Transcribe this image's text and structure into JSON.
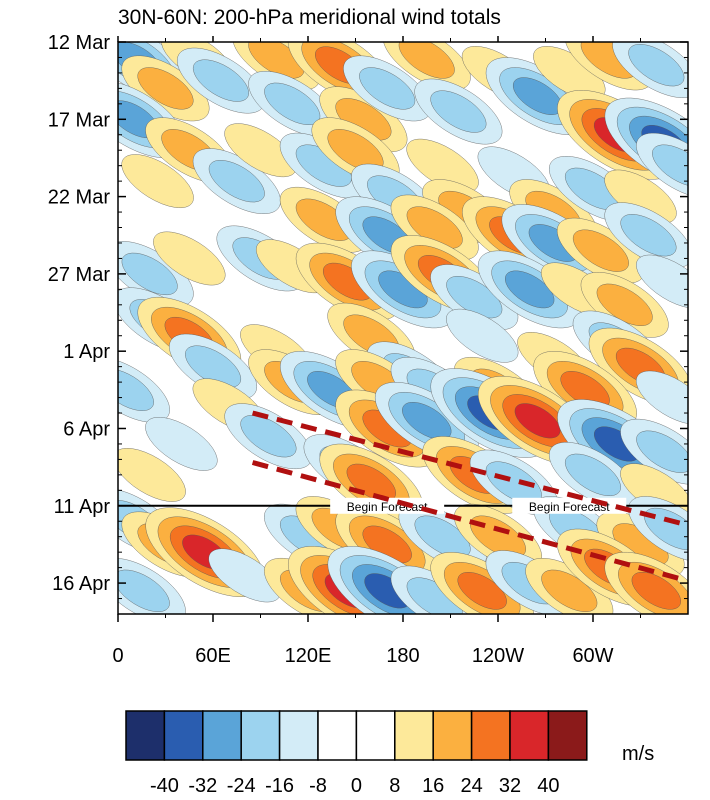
{
  "chart_data": {
    "type": "heatmap",
    "title": "30N-60N: 200-hPa meridional wind totals",
    "xlabel": "",
    "ylabel": "",
    "x_ticks": [
      {
        "lon": 0,
        "label": "0"
      },
      {
        "lon": 60,
        "label": "60E"
      },
      {
        "lon": 120,
        "label": "120E"
      },
      {
        "lon": 180,
        "label": "180"
      },
      {
        "lon": 240,
        "label": "120W"
      },
      {
        "lon": 300,
        "label": "60W"
      }
    ],
    "y_ticks": [
      {
        "day": 0,
        "label": "12 Mar"
      },
      {
        "day": 5,
        "label": "17 Mar"
      },
      {
        "day": 10,
        "label": "22 Mar"
      },
      {
        "day": 15,
        "label": "27 Mar"
      },
      {
        "day": 20,
        "label": "1 Apr"
      },
      {
        "day": 25,
        "label": "6 Apr"
      },
      {
        "day": 30,
        "label": "11 Apr"
      },
      {
        "day": 35,
        "label": "16 Apr"
      }
    ],
    "xlim": [
      0,
      360
    ],
    "ylim": [
      0,
      37
    ],
    "forecast_line": {
      "day": 30,
      "labels": [
        "Begin Forecast",
        "Begin Forecast"
      ],
      "label_lons": [
        170,
        285
      ]
    },
    "dashed_lines": [
      {
        "color": "#b01010",
        "start": {
          "lon": 85,
          "day": 24.0
        },
        "end": {
          "lon": 358,
          "day": 31.2
        }
      },
      {
        "color": "#b01010",
        "start": {
          "lon": 85,
          "day": 27.2
        },
        "end": {
          "lon": 358,
          "day": 34.8
        }
      }
    ],
    "colorbar": {
      "unit": "m/s",
      "levels": [
        "-40",
        "-32",
        "-24",
        "-16",
        "-8",
        "0",
        "8",
        "16",
        "24",
        "32",
        "40"
      ],
      "colors": [
        "#1d2f6b",
        "#2a5db0",
        "#5aa4d8",
        "#9cd3ef",
        "#d3ecf7",
        "#ffffff",
        "#ffffff",
        "#fde99a",
        "#fbb040",
        "#f47321",
        "#d9262a",
        "#8b1a1a"
      ]
    },
    "features": [
      {
        "lon": 12,
        "day": 1.2,
        "v": -24
      },
      {
        "lon": 30,
        "day": 3,
        "v": 16
      },
      {
        "lon": 50,
        "day": 1,
        "v": 8
      },
      {
        "lon": 65,
        "day": 2.5,
        "v": -16
      },
      {
        "lon": 100,
        "day": 1,
        "v": 16
      },
      {
        "lon": 110,
        "day": 4,
        "v": -16
      },
      {
        "lon": 140,
        "day": 1.5,
        "v": 24
      },
      {
        "lon": 155,
        "day": 5,
        "v": 16
      },
      {
        "lon": 170,
        "day": 3,
        "v": -16
      },
      {
        "lon": 195,
        "day": 1,
        "v": 16
      },
      {
        "lon": 215,
        "day": 4.5,
        "v": -16
      },
      {
        "lon": 240,
        "day": 2,
        "v": 8
      },
      {
        "lon": 265,
        "day": 3.5,
        "v": -24
      },
      {
        "lon": 285,
        "day": 2,
        "v": 8
      },
      {
        "lon": 310,
        "day": 1,
        "v": 16
      },
      {
        "lon": 340,
        "day": 1.5,
        "v": -16
      },
      {
        "lon": 315,
        "day": 6,
        "v": 32
      },
      {
        "lon": 345,
        "day": 6.5,
        "v": -32
      },
      {
        "lon": 10,
        "day": 5,
        "v": -24
      },
      {
        "lon": 45,
        "day": 7,
        "v": 16
      },
      {
        "lon": 25,
        "day": 9,
        "v": 8
      },
      {
        "lon": 75,
        "day": 9,
        "v": -16
      },
      {
        "lon": 90,
        "day": 7,
        "v": 8
      },
      {
        "lon": 130,
        "day": 8,
        "v": -16
      },
      {
        "lon": 150,
        "day": 7,
        "v": 16
      },
      {
        "lon": 175,
        "day": 10,
        "v": -16
      },
      {
        "lon": 205,
        "day": 8,
        "v": 8
      },
      {
        "lon": 220,
        "day": 11,
        "v": 16
      },
      {
        "lon": 250,
        "day": 8.5,
        "v": -8
      },
      {
        "lon": 275,
        "day": 11,
        "v": 16
      },
      {
        "lon": 300,
        "day": 9.5,
        "v": -16
      },
      {
        "lon": 330,
        "day": 10,
        "v": 8
      },
      {
        "lon": 355,
        "day": 8,
        "v": -16
      },
      {
        "lon": 130,
        "day": 11.5,
        "v": 16
      },
      {
        "lon": 170,
        "day": 12.5,
        "v": -24
      },
      {
        "lon": 200,
        "day": 12,
        "v": 16
      },
      {
        "lon": 250,
        "day": 12.5,
        "v": 24
      },
      {
        "lon": 275,
        "day": 13,
        "v": -24
      },
      {
        "lon": 305,
        "day": 13.5,
        "v": 16
      },
      {
        "lon": 335,
        "day": 12.5,
        "v": -16
      },
      {
        "lon": 20,
        "day": 15,
        "v": -16
      },
      {
        "lon": 45,
        "day": 14,
        "v": 8
      },
      {
        "lon": 90,
        "day": 14,
        "v": -16
      },
      {
        "lon": 110,
        "day": 14.5,
        "v": 8
      },
      {
        "lon": 145,
        "day": 15.5,
        "v": 24
      },
      {
        "lon": 180,
        "day": 16,
        "v": -24
      },
      {
        "lon": 205,
        "day": 15,
        "v": 24
      },
      {
        "lon": 225,
        "day": 16.5,
        "v": -16
      },
      {
        "lon": 260,
        "day": 16,
        "v": -24
      },
      {
        "lon": 290,
        "day": 16,
        "v": 8
      },
      {
        "lon": 320,
        "day": 17,
        "v": 16
      },
      {
        "lon": 350,
        "day": 15.5,
        "v": -8
      },
      {
        "lon": 25,
        "day": 18,
        "v": -16
      },
      {
        "lon": 45,
        "day": 19,
        "v": 24
      },
      {
        "lon": 60,
        "day": 21,
        "v": -16
      },
      {
        "lon": 100,
        "day": 20,
        "v": 8
      },
      {
        "lon": 160,
        "day": 19,
        "v": 16
      },
      {
        "lon": 185,
        "day": 21.5,
        "v": -16
      },
      {
        "lon": 230,
        "day": 19,
        "v": -8
      },
      {
        "lon": 275,
        "day": 20.5,
        "v": 8
      },
      {
        "lon": 315,
        "day": 19.5,
        "v": -16
      },
      {
        "lon": 330,
        "day": 21,
        "v": 24
      },
      {
        "lon": 5,
        "day": 22.5,
        "v": -16
      },
      {
        "lon": 70,
        "day": 23.5,
        "v": 8
      },
      {
        "lon": 110,
        "day": 22,
        "v": 16
      },
      {
        "lon": 135,
        "day": 22.5,
        "v": -24
      },
      {
        "lon": 165,
        "day": 22,
        "v": 16
      },
      {
        "lon": 200,
        "day": 22.5,
        "v": -16
      },
      {
        "lon": 240,
        "day": 22.5,
        "v": 16
      },
      {
        "lon": 295,
        "day": 22.5,
        "v": 24
      },
      {
        "lon": 350,
        "day": 23,
        "v": -8
      },
      {
        "lon": 40,
        "day": 26,
        "v": -8
      },
      {
        "lon": 95,
        "day": 25.5,
        "v": -16
      },
      {
        "lon": 170,
        "day": 25,
        "v": 24
      },
      {
        "lon": 195,
        "day": 24.5,
        "v": -24
      },
      {
        "lon": 235,
        "day": 24,
        "v": -32
      },
      {
        "lon": 265,
        "day": 24.5,
        "v": 32
      },
      {
        "lon": 315,
        "day": 26,
        "v": -32
      },
      {
        "lon": 345,
        "day": 26.5,
        "v": -16
      },
      {
        "lon": 20,
        "day": 28,
        "v": 8
      },
      {
        "lon": 145,
        "day": 27.5,
        "v": -16
      },
      {
        "lon": 160,
        "day": 28.5,
        "v": 24
      },
      {
        "lon": 225,
        "day": 28,
        "v": 24
      },
      {
        "lon": 250,
        "day": 28.5,
        "v": -16
      },
      {
        "lon": 300,
        "day": 28,
        "v": -16
      },
      {
        "lon": 340,
        "day": 29,
        "v": 8
      },
      {
        "lon": 10,
        "day": 31,
        "v": -16
      },
      {
        "lon": 30,
        "day": 32.5,
        "v": 16
      },
      {
        "lon": 55,
        "day": 33,
        "v": 32
      },
      {
        "lon": 120,
        "day": 32,
        "v": -16
      },
      {
        "lon": 140,
        "day": 31.5,
        "v": 16
      },
      {
        "lon": 170,
        "day": 32.5,
        "v": 24
      },
      {
        "lon": 205,
        "day": 32,
        "v": -16
      },
      {
        "lon": 240,
        "day": 32,
        "v": 16
      },
      {
        "lon": 290,
        "day": 31.5,
        "v": -16
      },
      {
        "lon": 330,
        "day": 32.5,
        "v": 16
      },
      {
        "lon": 350,
        "day": 31.5,
        "v": -16
      },
      {
        "lon": 15,
        "day": 35.5,
        "v": -16
      },
      {
        "lon": 80,
        "day": 34.5,
        "v": -8
      },
      {
        "lon": 120,
        "day": 35.5,
        "v": 16
      },
      {
        "lon": 145,
        "day": 35.5,
        "v": 32
      },
      {
        "lon": 170,
        "day": 35.5,
        "v": -32
      },
      {
        "lon": 200,
        "day": 36,
        "v": -16
      },
      {
        "lon": 230,
        "day": 35.5,
        "v": 24
      },
      {
        "lon": 260,
        "day": 35,
        "v": -16
      },
      {
        "lon": 285,
        "day": 35.5,
        "v": 16
      },
      {
        "lon": 310,
        "day": 34,
        "v": 24
      },
      {
        "lon": 340,
        "day": 35.5,
        "v": 24
      }
    ]
  }
}
